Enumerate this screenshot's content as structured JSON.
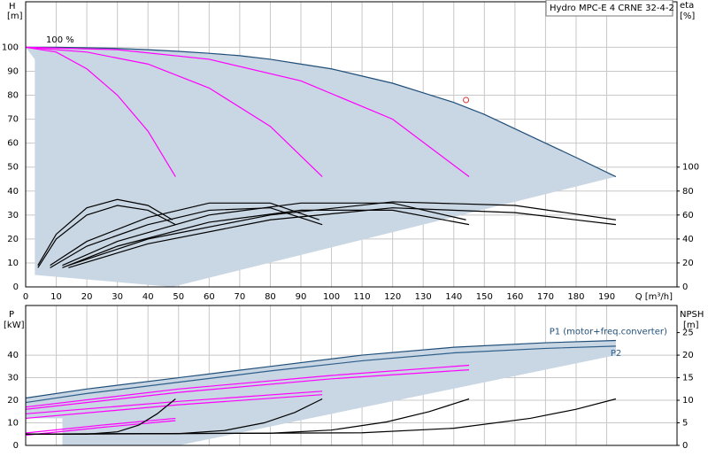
{
  "chart_data": [
    {
      "type": "line",
      "title": "Hydro MPC-E 4 CRNE 32-4-2",
      "annotation": "100 %",
      "xlabel": "Q [m³/h]",
      "ylabel": "H",
      "yunit": "[m]",
      "y2label": "eta",
      "y2unit": "[%]",
      "xlim": [
        0,
        213
      ],
      "xticks": [
        0,
        10,
        20,
        30,
        40,
        50,
        60,
        70,
        80,
        90,
        100,
        110,
        120,
        130,
        140,
        150,
        160,
        170,
        180,
        190
      ],
      "ylim": [
        0,
        119
      ],
      "yticks": [
        0,
        10,
        20,
        30,
        40,
        50,
        60,
        70,
        80,
        90,
        100
      ],
      "y2lim": [
        0,
        238
      ],
      "y2ticks": [
        0,
        20,
        40,
        60,
        80,
        100
      ],
      "grid": true,
      "series": [
        {
          "kind": "area",
          "color": "#c9d6e3",
          "x": [
            0,
            10,
            20,
            30,
            40,
            50,
            60,
            70,
            80,
            90,
            100,
            110,
            120,
            130,
            140,
            150,
            160,
            170,
            180,
            193,
            48,
            3,
            3
          ],
          "values": [
            100,
            100,
            99.8,
            99.5,
            99,
            98.3,
            97.5,
            96.5,
            95,
            93,
            91,
            88,
            85,
            81,
            77,
            72,
            66,
            60,
            54,
            46,
            0,
            5,
            95
          ]
        },
        {
          "kind": "line",
          "color": "#1f4e79",
          "x": [
            0,
            10,
            20,
            30,
            40,
            50,
            60,
            70,
            80,
            90,
            100,
            110,
            120,
            130,
            140,
            150,
            160,
            170,
            180,
            193
          ],
          "values": [
            100,
            100,
            99.8,
            99.5,
            99,
            98.3,
            97.5,
            96.5,
            95,
            93,
            91,
            88,
            85,
            81,
            77,
            72,
            66,
            60,
            54,
            46
          ]
        },
        {
          "kind": "line",
          "color": "#ff00ff",
          "x": [
            0,
            10,
            20,
            30,
            40,
            49
          ],
          "values": [
            100,
            98,
            91,
            80,
            65,
            46
          ]
        },
        {
          "kind": "line",
          "color": "#ff00ff",
          "x": [
            0,
            20,
            40,
            60,
            80,
            97
          ],
          "values": [
            100,
            98,
            93,
            83,
            67,
            46
          ]
        },
        {
          "kind": "line",
          "color": "#ff00ff",
          "x": [
            0,
            30,
            60,
            90,
            120,
            145
          ],
          "values": [
            100,
            99,
            95,
            86,
            70,
            46
          ]
        },
        {
          "kind": "line",
          "color": "#000000",
          "axis": "y2",
          "x": [
            4,
            10,
            20,
            30,
            40,
            49
          ],
          "values": [
            16,
            40,
            60,
            68,
            64,
            52
          ]
        },
        {
          "kind": "line",
          "color": "#000000",
          "axis": "y2",
          "x": [
            4,
            10,
            20,
            30,
            40,
            48
          ],
          "values": [
            18,
            44,
            66,
            73,
            68,
            56
          ]
        },
        {
          "kind": "line",
          "color": "#000000",
          "axis": "y2",
          "x": [
            8,
            20,
            40,
            60,
            80,
            97
          ],
          "values": [
            16,
            34,
            52,
            64,
            66,
            52
          ]
        },
        {
          "kind": "line",
          "color": "#000000",
          "axis": "y2",
          "x": [
            8,
            20,
            40,
            60,
            80,
            96
          ],
          "values": [
            18,
            38,
            58,
            70,
            70,
            56
          ]
        },
        {
          "kind": "line",
          "color": "#000000",
          "axis": "y2",
          "x": [
            12,
            30,
            60,
            90,
            120,
            145
          ],
          "values": [
            16,
            34,
            54,
            64,
            64,
            52
          ]
        },
        {
          "kind": "line",
          "color": "#000000",
          "axis": "y2",
          "x": [
            12,
            30,
            60,
            90,
            120,
            144
          ],
          "values": [
            18,
            38,
            60,
            70,
            70,
            56
          ]
        },
        {
          "kind": "line",
          "color": "#000000",
          "axis": "y2",
          "x": [
            14,
            40,
            80,
            120,
            160,
            193
          ],
          "values": [
            16,
            36,
            56,
            66,
            62,
            52
          ]
        },
        {
          "kind": "line",
          "color": "#000000",
          "axis": "y2",
          "x": [
            14,
            40,
            80,
            120,
            160,
            193
          ],
          "values": [
            18,
            40,
            60,
            71,
            68,
            56
          ]
        },
        {
          "kind": "point",
          "color": "#e03030",
          "x": [
            144
          ],
          "values": [
            78
          ]
        }
      ]
    },
    {
      "type": "line",
      "ylabel": "P",
      "yunit": "[kW]",
      "y2label": "NPSH",
      "y2unit": "[m]",
      "ylim": [
        0,
        62
      ],
      "yticks": [
        0,
        10,
        20,
        30,
        40
      ],
      "y2lim": [
        0,
        31
      ],
      "y2ticks": [
        0,
        5,
        10,
        15,
        20,
        25
      ],
      "grid": true,
      "series": [
        {
          "kind": "area",
          "color": "#c9d6e3",
          "x": [
            0,
            20,
            50,
            80,
            110,
            140,
            170,
            193,
            193,
            50,
            12,
            12,
            0
          ],
          "values": [
            21,
            25,
            30,
            35,
            40,
            43.5,
            45.5,
            46.5,
            40,
            0,
            0,
            12,
            12
          ]
        },
        {
          "kind": "line",
          "name": "P1 (motor+freq.converter)",
          "color": "#1f4e79",
          "x": [
            0,
            20,
            50,
            80,
            110,
            140,
            170,
            193
          ],
          "values": [
            21,
            25,
            30,
            35,
            40,
            43.5,
            45.5,
            46.5
          ]
        },
        {
          "kind": "line",
          "name": "P2",
          "color": "#2e5f8a",
          "x": [
            0,
            20,
            50,
            80,
            110,
            140,
            170,
            193
          ],
          "values": [
            19,
            23,
            28,
            33,
            37.5,
            41,
            43,
            44
          ]
        },
        {
          "kind": "line",
          "color": "#ff00ff",
          "x": [
            0,
            25,
            49
          ],
          "values": [
            5.5,
            9,
            12
          ]
        },
        {
          "kind": "line",
          "color": "#ff00ff",
          "x": [
            0,
            25,
            49
          ],
          "values": [
            4.5,
            8,
            11
          ]
        },
        {
          "kind": "line",
          "color": "#ff00ff",
          "x": [
            0,
            50,
            97
          ],
          "values": [
            14,
            19.5,
            24
          ]
        },
        {
          "kind": "line",
          "color": "#ff00ff",
          "x": [
            0,
            50,
            97
          ],
          "values": [
            12,
            18,
            22.5
          ]
        },
        {
          "kind": "line",
          "color": "#ff00ff",
          "x": [
            0,
            50,
            100,
            145
          ],
          "values": [
            17,
            25,
            31,
            35.5
          ]
        },
        {
          "kind": "line",
          "color": "#ff00ff",
          "x": [
            0,
            50,
            100,
            145
          ],
          "values": [
            16,
            23.5,
            29.5,
            33.5
          ]
        },
        {
          "kind": "line",
          "color": "#000000",
          "axis": "y2",
          "x": [
            0,
            20,
            30,
            37,
            43,
            49
          ],
          "values": [
            2.5,
            2.5,
            3,
            4.5,
            7,
            10.3
          ]
        },
        {
          "kind": "line",
          "color": "#000000",
          "axis": "y2",
          "x": [
            0,
            50,
            65,
            78,
            88,
            97
          ],
          "values": [
            2.5,
            2.6,
            3.3,
            5,
            7.3,
            10.3
          ]
        },
        {
          "kind": "line",
          "color": "#000000",
          "axis": "y2",
          "x": [
            0,
            80,
            100,
            118,
            132,
            145
          ],
          "values": [
            2.5,
            2.7,
            3.4,
            5.2,
            7.5,
            10.3
          ]
        },
        {
          "kind": "line",
          "color": "#000000",
          "axis": "y2",
          "x": [
            0,
            110,
            140,
            165,
            180,
            193
          ],
          "values": [
            2.5,
            2.8,
            3.8,
            6,
            8,
            10.3
          ]
        }
      ]
    }
  ]
}
